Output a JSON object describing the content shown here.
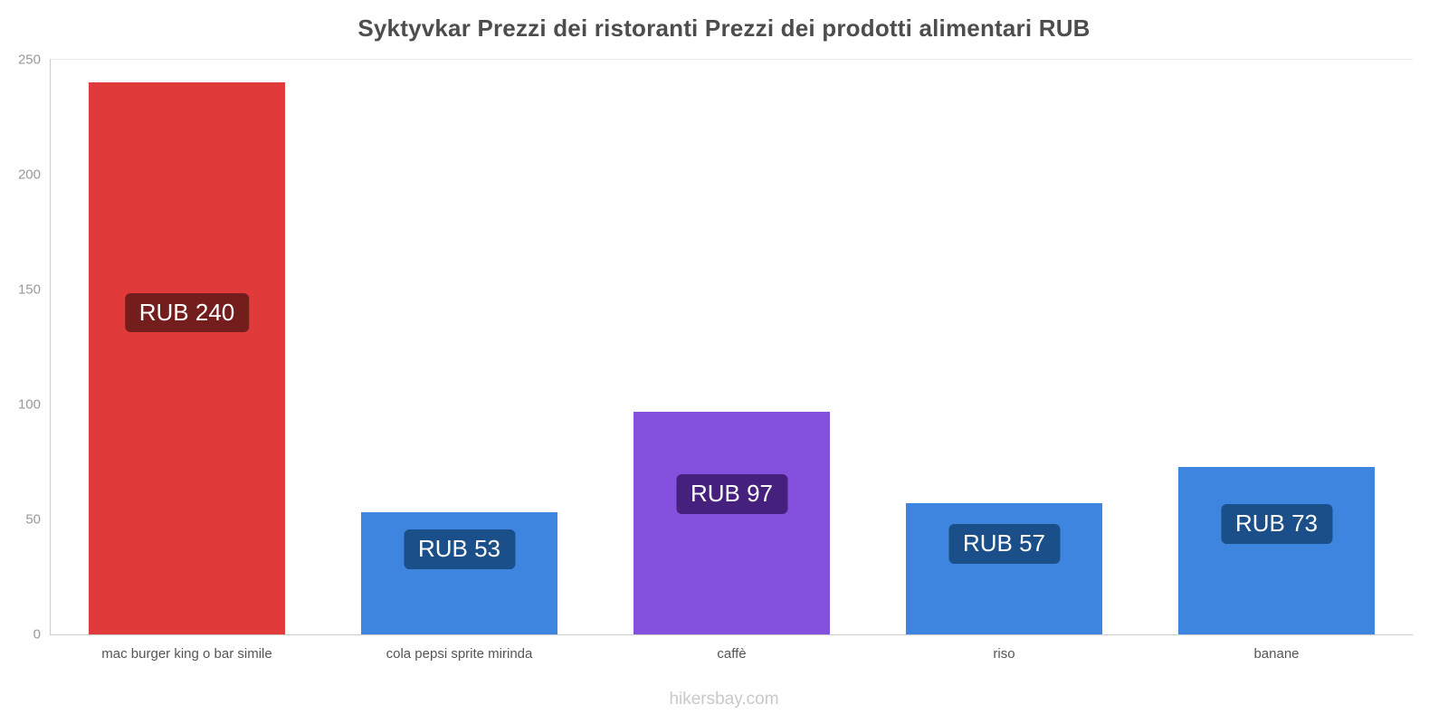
{
  "title": "Syktyvkar Prezzi dei ristoranti Prezzi dei prodotti alimentari RUB",
  "footer": "hikersbay.com",
  "chart_data": {
    "type": "bar",
    "title": "Syktyvkar Prezzi dei ristoranti Prezzi dei prodotti alimentari RUB",
    "categories": [
      "mac burger king o bar simile",
      "cola pepsi sprite mirinda",
      "caffè",
      "riso",
      "banane"
    ],
    "values": [
      240,
      53,
      97,
      57,
      73
    ],
    "value_labels": [
      "RUB 240",
      "RUB 53",
      "RUB 97",
      "RUB 57",
      "RUB 73"
    ],
    "currency": "RUB",
    "bar_colors": [
      "#e03a3a",
      "#3d85de",
      "#8351dd",
      "#3d85de",
      "#3d85de"
    ],
    "label_bg_colors": [
      "#741d1d",
      "#1b4f8a",
      "#45207d",
      "#1b4f8a",
      "#1b4f8a"
    ],
    "xlabel": "",
    "ylabel": "",
    "ylim": [
      0,
      250
    ],
    "yticks": [
      0,
      50,
      100,
      150,
      200,
      250
    ],
    "grid": false,
    "legend": false,
    "axis_color": "#cccccc",
    "tick_label_color": "#999999",
    "category_label_color": "#555555"
  }
}
